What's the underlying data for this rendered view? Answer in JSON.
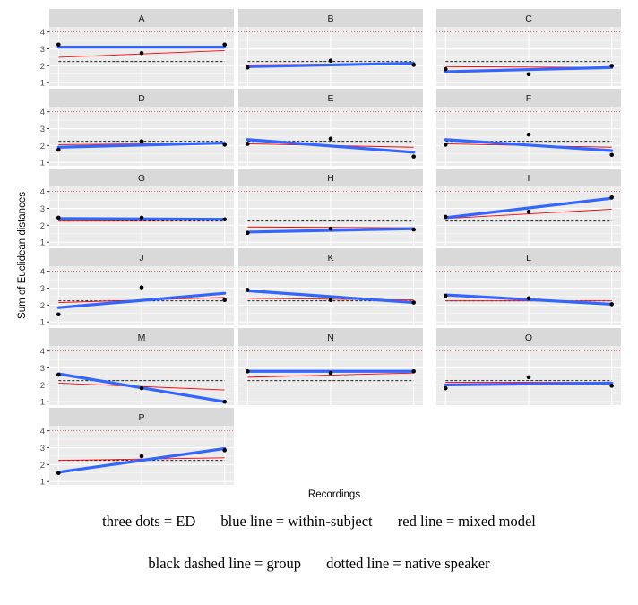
{
  "chart_data": {
    "type": "line",
    "facets": [
      "A",
      "B",
      "C",
      "D",
      "E",
      "F",
      "G",
      "H",
      "I",
      "J",
      "K",
      "L",
      "M",
      "N",
      "O",
      "P"
    ],
    "x_axis_label": "Recordings",
    "y_axis_label": "Sum of Euclidean distances",
    "y_ticks": [
      1,
      2,
      3,
      4
    ],
    "y_range": [
      0.8,
      4.3
    ],
    "x_points": [
      1,
      2,
      3
    ],
    "native_speaker_level": 4,
    "group_line": [
      2.25,
      2.25
    ],
    "panels": [
      {
        "id": "A",
        "ed": [
          3.25,
          2.75,
          3.25
        ],
        "within": [
          3.1,
          3.1
        ],
        "mixed": [
          2.5,
          2.9
        ],
        "group": [
          2.25,
          2.25
        ]
      },
      {
        "id": "B",
        "ed": [
          1.9,
          2.3,
          2.05
        ],
        "within": [
          1.95,
          2.15
        ],
        "mixed": [
          2.05,
          2.15
        ],
        "group": [
          2.25,
          2.25
        ]
      },
      {
        "id": "C",
        "ed": [
          1.8,
          1.5,
          2.0
        ],
        "within": [
          1.65,
          1.9
        ],
        "mixed": [
          1.95,
          1.9
        ],
        "group": [
          2.25,
          2.25
        ]
      },
      {
        "id": "D",
        "ed": [
          1.75,
          2.25,
          2.05
        ],
        "within": [
          1.9,
          2.15
        ],
        "mixed": [
          2.05,
          2.15
        ],
        "group": [
          2.25,
          2.25
        ]
      },
      {
        "id": "E",
        "ed": [
          2.1,
          2.4,
          1.35
        ],
        "within": [
          2.35,
          1.6
        ],
        "mixed": [
          2.1,
          1.9
        ],
        "group": [
          2.25,
          2.25
        ]
      },
      {
        "id": "F",
        "ed": [
          2.05,
          2.65,
          1.45
        ],
        "within": [
          2.35,
          1.7
        ],
        "mixed": [
          2.1,
          1.9
        ],
        "group": [
          2.25,
          2.25
        ]
      },
      {
        "id": "G",
        "ed": [
          2.45,
          2.45,
          2.35
        ],
        "within": [
          2.4,
          2.35
        ],
        "mixed": [
          2.25,
          2.3
        ],
        "group": [
          2.25,
          2.25
        ]
      },
      {
        "id": "H",
        "ed": [
          1.55,
          1.8,
          1.75
        ],
        "within": [
          1.6,
          1.8
        ],
        "mixed": [
          1.9,
          1.85
        ],
        "group": [
          2.25,
          2.25
        ]
      },
      {
        "id": "I",
        "ed": [
          2.5,
          2.8,
          3.65
        ],
        "within": [
          2.45,
          3.6
        ],
        "mixed": [
          2.4,
          2.95
        ],
        "group": [
          2.25,
          2.25
        ]
      },
      {
        "id": "J",
        "ed": [
          1.45,
          3.05,
          2.3
        ],
        "within": [
          1.85,
          2.7
        ],
        "mixed": [
          2.15,
          2.45
        ],
        "group": [
          2.25,
          2.25
        ]
      },
      {
        "id": "K",
        "ed": [
          2.9,
          2.3,
          2.15
        ],
        "within": [
          2.85,
          2.15
        ],
        "mixed": [
          2.4,
          2.3
        ],
        "group": [
          2.25,
          2.25
        ]
      },
      {
        "id": "L",
        "ed": [
          2.55,
          2.4,
          2.05
        ],
        "within": [
          2.6,
          2.05
        ],
        "mixed": [
          2.25,
          2.25
        ],
        "group": [
          2.25,
          2.25
        ]
      },
      {
        "id": "M",
        "ed": [
          2.6,
          1.8,
          1.0
        ],
        "within": [
          2.65,
          1.0
        ],
        "mixed": [
          2.1,
          1.7
        ],
        "group": [
          2.25,
          2.25
        ]
      },
      {
        "id": "N",
        "ed": [
          2.8,
          2.7,
          2.8
        ],
        "within": [
          2.8,
          2.8
        ],
        "mixed": [
          2.45,
          2.7
        ],
        "group": [
          2.25,
          2.25
        ]
      },
      {
        "id": "O",
        "ed": [
          1.8,
          2.45,
          1.95
        ],
        "within": [
          2.0,
          2.1
        ],
        "mixed": [
          2.15,
          2.15
        ],
        "group": [
          2.25,
          2.25
        ]
      },
      {
        "id": "P",
        "ed": [
          1.5,
          2.5,
          2.85
        ],
        "within": [
          1.55,
          2.95
        ],
        "mixed": [
          2.25,
          2.4
        ],
        "group": [
          2.25,
          2.25
        ]
      }
    ],
    "colors": {
      "panel_bg": "#ebebeb",
      "strip_bg": "#d9d9d9",
      "grid": "#ffffff",
      "within_subject": "#3366ff",
      "mixed_model": "#ff0000",
      "group": "#000000",
      "native_speaker": "#cc6666",
      "ed_points": "#000000"
    }
  },
  "legend": {
    "ed": "three dots = ED",
    "within": "blue line = within-subject",
    "mixed": "red line = mixed model",
    "group": "black dashed line = group",
    "native": "dotted line = native speaker"
  }
}
